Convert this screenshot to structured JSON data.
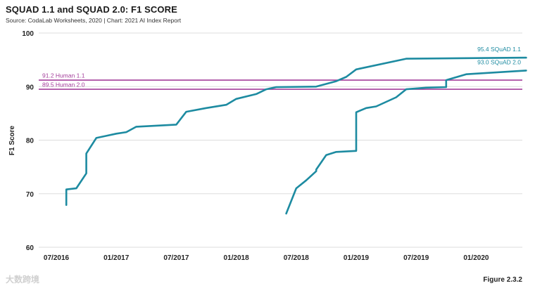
{
  "header": {
    "title": "SQUAD 1.1 and SQUAD 2.0: F1 SCORE",
    "source": "Source: CodaLab Worksheets, 2020 | Chart: 2021 AI Index Report"
  },
  "figure_label": "Figure 2.3.2",
  "watermark": "大数跨境",
  "colors": {
    "series": "#1d8ba1",
    "human": "#a43f9b",
    "grid": "#dddddd"
  },
  "chart_data": {
    "type": "line",
    "title": "SQUAD 1.1 and SQUAD 2.0: F1 SCORE",
    "xlabel": "",
    "ylabel": "F1 Score",
    "ylim": [
      60,
      100
    ],
    "yticks": [
      60,
      70,
      80,
      90,
      100
    ],
    "x_ticks": [
      "07/2016",
      "01/2017",
      "07/2017",
      "01/2018",
      "07/2018",
      "01/2019",
      "07/2019",
      "01/2020"
    ],
    "grid": "horizontal",
    "reference_lines": [
      {
        "label": "91.2 Human 1.1",
        "value": 91.2
      },
      {
        "label": "89.5 Human 2.0",
        "value": 89.5
      }
    ],
    "series": [
      {
        "name": "SQuAD 1.1",
        "end_label": "95.4 SQuAD 1.1",
        "points": [
          [
            "2016-08",
            67.9
          ],
          [
            "2016-08",
            70.8
          ],
          [
            "2016-09",
            71.0
          ],
          [
            "2016-10",
            73.8
          ],
          [
            "2016-10",
            77.5
          ],
          [
            "2016-11",
            80.4
          ],
          [
            "2016-12",
            80.8
          ],
          [
            "2017-01",
            81.2
          ],
          [
            "2017-02",
            81.5
          ],
          [
            "2017-03",
            82.5
          ],
          [
            "2017-05",
            82.7
          ],
          [
            "2017-07",
            82.9
          ],
          [
            "2017-08",
            85.3
          ],
          [
            "2017-10",
            86.0
          ],
          [
            "2017-12",
            86.6
          ],
          [
            "2018-01",
            87.7
          ],
          [
            "2018-03",
            88.6
          ],
          [
            "2018-04",
            89.5
          ],
          [
            "2018-05",
            89.9
          ],
          [
            "2018-09",
            90.0
          ],
          [
            "2018-11",
            91.0
          ],
          [
            "2018-12",
            91.8
          ],
          [
            "2019-01",
            93.2
          ],
          [
            "2019-06",
            95.2
          ],
          [
            "2020-06",
            95.4
          ]
        ]
      },
      {
        "name": "SQuAD 2.0",
        "end_label": "93.0 SQuAD 2.0",
        "points": [
          [
            "2018-06",
            66.3
          ],
          [
            "2018-07",
            71.0
          ],
          [
            "2018-08",
            72.5
          ],
          [
            "2018-09",
            74.2
          ],
          [
            "2018-09",
            74.5
          ],
          [
            "2018-10",
            77.2
          ],
          [
            "2018-11",
            77.8
          ],
          [
            "2019-01",
            78.0
          ],
          [
            "2019-01",
            83.0
          ],
          [
            "2019-01",
            85.2
          ],
          [
            "2019-02",
            86.0
          ],
          [
            "2019-03",
            86.3
          ],
          [
            "2019-05",
            88.0
          ],
          [
            "2019-06",
            89.5
          ],
          [
            "2019-08",
            89.8
          ],
          [
            "2019-10",
            89.9
          ],
          [
            "2019-10",
            91.2
          ],
          [
            "2019-12",
            92.3
          ],
          [
            "2020-06",
            93.0
          ]
        ]
      }
    ]
  }
}
